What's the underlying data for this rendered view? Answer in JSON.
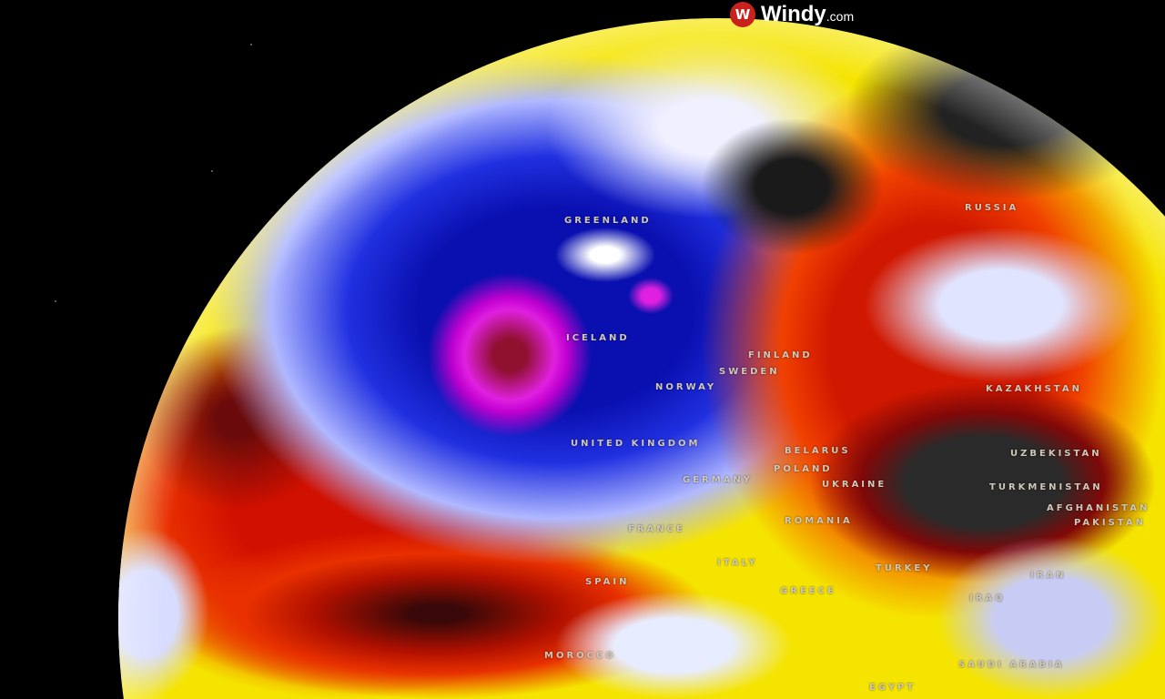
{
  "brand": {
    "name": "Windy",
    "suffix": ".com",
    "logo_icon": "windy-logo-icon",
    "brand_color": "#c8221d"
  },
  "map": {
    "layer_colors": {
      "cold": "#1a1acc",
      "very_cold": "#e020e0",
      "mild": "#f0f0ff",
      "warm": "#f5e400",
      "hot": "#e02000",
      "very_hot": "#2a2a2a"
    },
    "labels": [
      {
        "id": "greenland",
        "text": "GREENLAND"
      },
      {
        "id": "russia",
        "text": "RUSSIA"
      },
      {
        "id": "iceland",
        "text": "ICELAND"
      },
      {
        "id": "finland",
        "text": "FINLAND"
      },
      {
        "id": "norway",
        "text": "NORWAY"
      },
      {
        "id": "sweden",
        "text": "SWEDEN"
      },
      {
        "id": "united-kingdom",
        "text": "UNITED KINGDOM"
      },
      {
        "id": "belarus",
        "text": "BELARUS"
      },
      {
        "id": "poland",
        "text": "POLAND"
      },
      {
        "id": "germany",
        "text": "GERMANY"
      },
      {
        "id": "ukraine",
        "text": "UKRAINE"
      },
      {
        "id": "kazakhstan",
        "text": "KAZAKHSTAN"
      },
      {
        "id": "uzbekistan",
        "text": "UZBEKISTAN"
      },
      {
        "id": "turkmenistan",
        "text": "TURKMENISTAN"
      },
      {
        "id": "afghanistan",
        "text": "AFGHANISTAN"
      },
      {
        "id": "pakistan",
        "text": "PAKISTAN"
      },
      {
        "id": "france",
        "text": "FRANCE"
      },
      {
        "id": "romania",
        "text": "ROMANIA"
      },
      {
        "id": "italy",
        "text": "ITALY"
      },
      {
        "id": "spain",
        "text": "SPAIN"
      },
      {
        "id": "greece",
        "text": "GREECE"
      },
      {
        "id": "turkey",
        "text": "TURKEY"
      },
      {
        "id": "iran",
        "text": "IRAN"
      },
      {
        "id": "iraq",
        "text": "IRAQ"
      },
      {
        "id": "morocco",
        "text": "MOROCCO"
      },
      {
        "id": "saudi-arabia",
        "text": "SAUDI ARABIA"
      },
      {
        "id": "egypt",
        "text": "EGYPT"
      }
    ]
  }
}
